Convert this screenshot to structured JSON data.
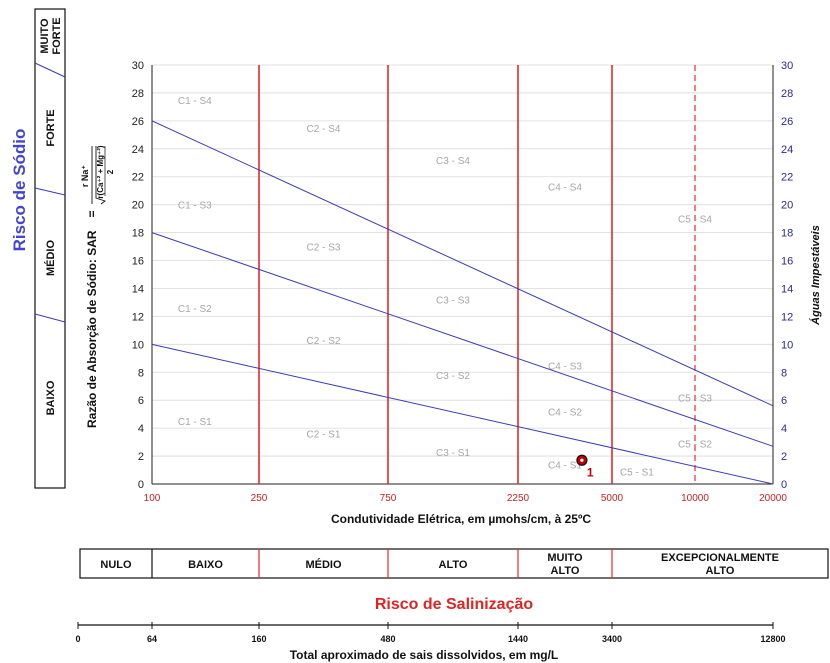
{
  "chart_data": {
    "type": "line",
    "xlabel": "Condutividade Elétrica, em µmohs/cm, à 25ºC",
    "ylabel_left": "Razão de Absorção de Sódio:  SAR",
    "ylabel_right": "Águas Impestáveis",
    "formula": {
      "equals": "=",
      "numerator": "r Na⁺",
      "denominator": "r(Ca⁺² + Mg⁺²)",
      "divisor": "2"
    },
    "sodium_title": "Risco de Sódio",
    "salinity_title": "Risco de Salinização",
    "tds_label": "Total aproximado de sais dissolvidos, em mg/L",
    "x_ticks": [
      "100",
      "250",
      "750",
      "2250",
      "5000",
      "10000",
      "20000"
    ],
    "y_ticks": [
      "0",
      "2",
      "4",
      "6",
      "8",
      "10",
      "12",
      "14",
      "16",
      "18",
      "20",
      "22",
      "24",
      "26",
      "28",
      "30"
    ],
    "ylim": [
      0,
      30
    ],
    "divider_lines": {
      "solid": [
        "250",
        "750",
        "2250",
        "5000"
      ],
      "dashed": [
        "10000"
      ]
    },
    "series": [
      {
        "x_index": [
          0,
          6
        ],
        "y": [
          10,
          0
        ]
      },
      {
        "x_index": [
          0,
          6
        ],
        "y": [
          18,
          2.7
        ]
      },
      {
        "x_index": [
          0,
          6
        ],
        "y": [
          26,
          5.6
        ]
      }
    ],
    "zones": [
      {
        "label": "C1 - S4",
        "x_index": 0.4,
        "y": 27.5
      },
      {
        "label": "C1 - S3",
        "x_index": 0.4,
        "y": 20
      },
      {
        "label": "C1 - S2",
        "x_index": 0.4,
        "y": 12.6
      },
      {
        "label": "C1 - S1",
        "x_index": 0.4,
        "y": 4.5
      },
      {
        "label": "C2 - S4",
        "x_index": 1.5,
        "y": 25.5
      },
      {
        "label": "C2 - S3",
        "x_index": 1.5,
        "y": 17
      },
      {
        "label": "C2 - S2",
        "x_index": 1.5,
        "y": 10.3
      },
      {
        "label": "C2 - S1",
        "x_index": 1.5,
        "y": 3.6
      },
      {
        "label": "C3 - S4",
        "x_index": 2.5,
        "y": 23.2
      },
      {
        "label": "C3 - S3",
        "x_index": 2.5,
        "y": 13.2
      },
      {
        "label": "C3 - S2",
        "x_index": 2.5,
        "y": 7.8
      },
      {
        "label": "C3 - S1",
        "x_index": 2.5,
        "y": 2.3
      },
      {
        "label": "C4 - S4",
        "x_index": 3.5,
        "y": 21.3
      },
      {
        "label": "C4 - S3",
        "x_index": 3.5,
        "y": 8.5
      },
      {
        "label": "C4 - S2",
        "x_index": 3.5,
        "y": 5.2
      },
      {
        "label": "C4 - S1",
        "x_index": 3.5,
        "y": 1.4
      },
      {
        "label": "C5 - S4",
        "x_index": 5.0,
        "y": 19
      },
      {
        "label": "C5 - S3",
        "x_index": 5.0,
        "y": 6.2
      },
      {
        "label": "C5 - S2",
        "x_index": 5.0,
        "y": 2.9
      },
      {
        "label": "C5 - S1",
        "x_index": 4.3,
        "y": 0.9
      }
    ],
    "sample_points": [
      {
        "label": "1",
        "x_index": 3.68,
        "y": 1.7
      }
    ],
    "sodium_classes": [
      "BAIXO",
      "MÉDIO",
      "FORTE",
      "MUITO FORTE"
    ],
    "salinity_classes": [
      {
        "label": "NULO"
      },
      {
        "label": "BAIXO"
      },
      {
        "label": "MÉDIO"
      },
      {
        "label": "ALTO"
      },
      {
        "label": "MUITO ALTO"
      },
      {
        "label": "EXCEPCIONALMENTE ALTO"
      }
    ],
    "tds_ticks": [
      "0",
      "64",
      "160",
      "480",
      "1440",
      "3400",
      "12800"
    ],
    "colors": {
      "grid": "#d9d9d9",
      "divider": "#e8282b",
      "line": "#3b3bbb",
      "axis_tick_left": "#222222",
      "axis_tick_right": "#2a2a8c",
      "x_tick": "#cc2222",
      "zone_label": "#a6a6a6",
      "sodium_title": "#4444d4",
      "salinity_title": "#e02424",
      "point": "#c00000"
    }
  }
}
